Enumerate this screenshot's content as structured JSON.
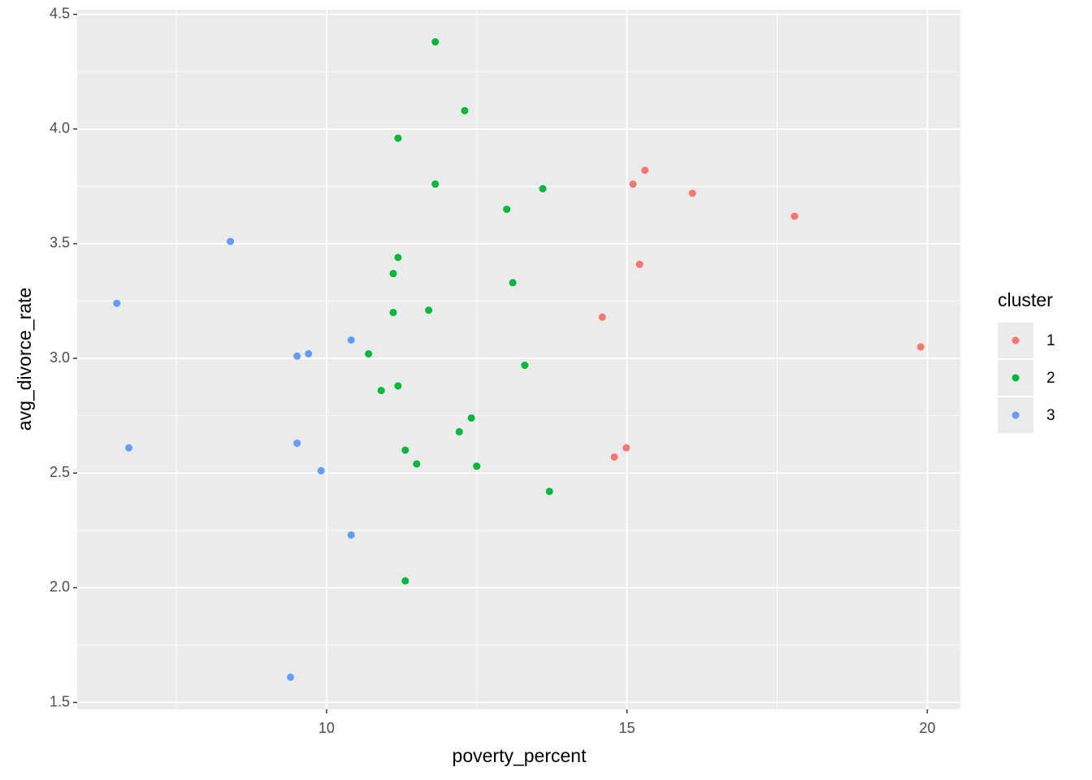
{
  "chart_data": {
    "type": "scatter",
    "x_label": "poverty_percent",
    "y_label": "avg_divorce_rate",
    "legend_title": "cluster",
    "legend_position": "right",
    "xlim": [
      5.85,
      20.55
    ],
    "ylim": [
      1.47,
      4.52
    ],
    "xticks": [
      10,
      15,
      20
    ],
    "yticks": [
      1.5,
      {
        "value": 2,
        "label": "2.0"
      },
      2.5,
      {
        "value": 3,
        "label": "3.0"
      },
      3.5,
      {
        "value": 4,
        "label": "4.0"
      },
      4.5
    ],
    "grid": true,
    "minor_grid": true,
    "series": [
      {
        "name": "1",
        "color": "#F8766D",
        "x": [
          15.3,
          15.1,
          16.09,
          17.79,
          15.21,
          14.59,
          19.89,
          14.99,
          14.79
        ],
        "values": [
          3.82,
          3.76,
          3.72,
          3.62,
          3.41,
          3.18,
          3.05,
          2.61,
          2.57
        ]
      },
      {
        "name": "2",
        "color": "#00BA38",
        "x": [
          11.81,
          12.3,
          11.19,
          11.81,
          13.6,
          13.0,
          11.19,
          11.11,
          13.1,
          11.11,
          11.7,
          10.7,
          13.3,
          10.91,
          11.19,
          12.41,
          12.21,
          11.31,
          11.5,
          12.5,
          13.71,
          11.31
        ],
        "values": [
          4.38,
          4.08,
          3.96,
          3.76,
          3.74,
          3.65,
          3.44,
          3.37,
          3.33,
          3.2,
          3.21,
          3.02,
          2.97,
          2.86,
          2.88,
          2.74,
          2.68,
          2.6,
          2.54,
          2.53,
          2.42,
          2.03
        ]
      },
      {
        "name": "3",
        "color": "#619CFF",
        "x": [
          8.4,
          6.51,
          10.41,
          9.7,
          9.51,
          6.71,
          9.51,
          9.91,
          10.41,
          9.4
        ],
        "values": [
          3.51,
          3.24,
          3.08,
          3.02,
          3.01,
          2.61,
          2.63,
          2.51,
          2.23,
          1.61
        ]
      }
    ]
  }
}
